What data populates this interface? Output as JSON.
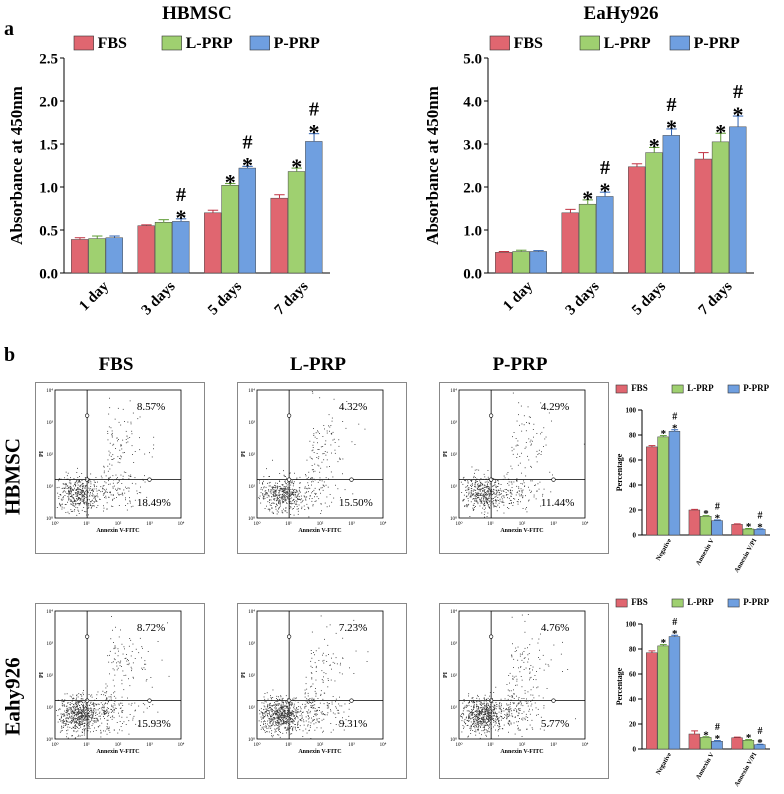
{
  "colors": {
    "FBS": "#e06670",
    "L-PRP": "#9fd070",
    "P-PRP": "#6f9fe0",
    "dots": "#333333"
  },
  "panel_labels": {
    "a": "a",
    "b": "b"
  },
  "legend": [
    "FBS",
    "L-PRP",
    "P-PRP"
  ],
  "flow": {
    "col_titles": [
      "FBS",
      "L-PRP",
      "P-PRP"
    ],
    "row_titles": [
      "HBMSC",
      "Eahy926"
    ],
    "ylabel": "PI",
    "xlabel": "Annexin V-FITC",
    "ticks": [
      "10⁰",
      "10¹",
      "10²",
      "10³",
      "10⁴"
    ],
    "plots": [
      {
        "row": 0,
        "col": 0,
        "upper_right": "8.57%",
        "lower_right": "18.49%"
      },
      {
        "row": 0,
        "col": 1,
        "upper_right": "4.32%",
        "lower_right": "15.50%"
      },
      {
        "row": 0,
        "col": 2,
        "upper_right": "4.29%",
        "lower_right": "11.44%"
      },
      {
        "row": 1,
        "col": 0,
        "upper_right": "8.72%",
        "lower_right": "15.93%"
      },
      {
        "row": 1,
        "col": 1,
        "upper_right": "7.23%",
        "lower_right": "9.31%"
      },
      {
        "row": 1,
        "col": 2,
        "upper_right": "4.76%",
        "lower_right": "5.77%"
      }
    ]
  },
  "chart_data": [
    {
      "id": "hbmsc-cck8",
      "type": "bar",
      "title": "HBMSC",
      "ylabel": "Absorbance at 450nm",
      "xlabel": "",
      "ylim": [
        0,
        2.5
      ],
      "yticks": [
        "0.0",
        "0.5",
        "1.0",
        "1.5",
        "2.0",
        "2.5"
      ],
      "categories": [
        "1 day",
        "3 days",
        "5 days",
        "7 days"
      ],
      "series": [
        {
          "name": "FBS",
          "values": [
            0.39,
            0.55,
            0.7,
            0.87
          ],
          "errors": [
            0.02,
            0.01,
            0.03,
            0.04
          ],
          "marks": [
            "",
            "",
            "",
            ""
          ]
        },
        {
          "name": "L-PRP",
          "values": [
            0.4,
            0.59,
            1.02,
            1.18
          ],
          "errors": [
            0.03,
            0.03,
            0.02,
            0.04
          ],
          "marks": [
            "",
            "",
            "*",
            "*"
          ]
        },
        {
          "name": "P-PRP",
          "values": [
            0.41,
            0.6,
            1.22,
            1.53
          ],
          "errors": [
            0.02,
            0.03,
            0.02,
            0.09
          ],
          "marks": [
            "",
            "#*",
            "#*",
            "#*"
          ]
        }
      ]
    },
    {
      "id": "eahy-cck8",
      "type": "bar",
      "title": "EaHy926",
      "ylabel": "Absorbance at 450nm",
      "xlabel": "",
      "ylim": [
        0,
        5.0
      ],
      "yticks": [
        "0.0",
        "1.0",
        "2.0",
        "3.0",
        "4.0",
        "5.0"
      ],
      "categories": [
        "1 day",
        "3 days",
        "5 days",
        "7 days"
      ],
      "series": [
        {
          "name": "FBS",
          "values": [
            0.48,
            1.4,
            2.47,
            2.65
          ],
          "errors": [
            0.02,
            0.08,
            0.07,
            0.15
          ],
          "marks": [
            "",
            "",
            "",
            ""
          ]
        },
        {
          "name": "L-PRP",
          "values": [
            0.5,
            1.6,
            2.8,
            3.05
          ],
          "errors": [
            0.03,
            0.1,
            0.12,
            0.2
          ],
          "marks": [
            "",
            "*",
            "*",
            "*"
          ]
        },
        {
          "name": "P-PRP",
          "values": [
            0.5,
            1.78,
            3.2,
            3.4
          ],
          "errors": [
            0.02,
            0.1,
            0.15,
            0.25
          ],
          "marks": [
            "",
            "#*",
            "#*",
            "#*"
          ]
        }
      ]
    },
    {
      "id": "hbmsc-apoptosis",
      "type": "bar",
      "title": "",
      "ylabel": "Percentage",
      "xlabel": "",
      "ylim": [
        0,
        100
      ],
      "yticks": [
        "0",
        "20",
        "40",
        "60",
        "80",
        "100"
      ],
      "categories": [
        "Negative",
        "Annexin V",
        "Annexin V/PI"
      ],
      "series": [
        {
          "name": "FBS",
          "values": [
            70.5,
            20.0,
            8.5
          ],
          "errors": [
            1.0,
            0.5,
            0.4
          ],
          "marks": [
            "",
            "",
            ""
          ]
        },
        {
          "name": "L-PRP",
          "values": [
            78.5,
            15.0,
            4.8
          ],
          "errors": [
            1.0,
            0.5,
            0.4
          ],
          "marks": [
            "*",
            "*",
            "*"
          ]
        },
        {
          "name": "P-PRP",
          "values": [
            83.0,
            11.5,
            4.5
          ],
          "errors": [
            1.2,
            0.5,
            0.4
          ],
          "marks": [
            "#*",
            "#*",
            "#*"
          ]
        }
      ]
    },
    {
      "id": "eahy-apoptosis",
      "type": "bar",
      "title": "",
      "ylabel": "Percentage",
      "xlabel": "",
      "ylim": [
        0,
        100
      ],
      "yticks": [
        "0",
        "20",
        "40",
        "60",
        "80",
        "100"
      ],
      "categories": [
        "Negative",
        "Annexin V",
        "Annexin V/PI"
      ],
      "series": [
        {
          "name": "FBS",
          "values": [
            77.0,
            12.0,
            9.0
          ],
          "errors": [
            1.5,
            2.5,
            0.5
          ],
          "marks": [
            "",
            "",
            ""
          ]
        },
        {
          "name": "L-PRP",
          "values": [
            82.5,
            9.3,
            7.0
          ],
          "errors": [
            1.0,
            0.5,
            0.5
          ],
          "marks": [
            "*",
            "*",
            "*"
          ]
        },
        {
          "name": "P-PRP",
          "values": [
            90.0,
            6.2,
            3.5
          ],
          "errors": [
            1.0,
            0.5,
            0.3
          ],
          "marks": [
            "#*",
            "#*",
            "#*"
          ]
        }
      ]
    }
  ]
}
